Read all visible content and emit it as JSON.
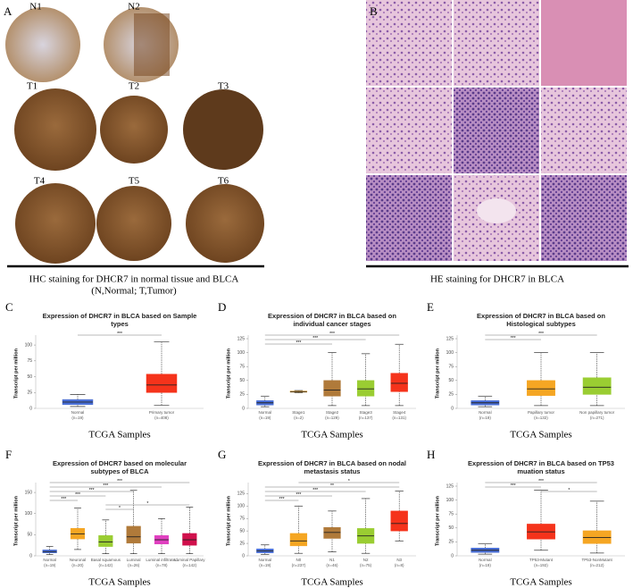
{
  "figure": {
    "panel_a": {
      "label": "A",
      "images": [
        "N1",
        "N2",
        "T1",
        "T2",
        "T3",
        "T4",
        "T5",
        "T6"
      ],
      "caption": [
        "IHC staining for DHCR7 in normal tissue and BLCA",
        "(N,Normal; T,Tumor)"
      ]
    },
    "panel_b": {
      "label": "B",
      "caption": "HE staining for DHCR7 in BLCA"
    }
  },
  "chart_data": [
    {
      "type": "box",
      "panel": "C",
      "title": "Expression of DHCR7 in BLCA based on Sample types",
      "ylabel": "Transcript per million",
      "xlabel": "TCGA Samples",
      "categories": [
        "Normal",
        "Primary tumor"
      ],
      "n_labels": [
        "(n=19)",
        "(n=408)"
      ],
      "colors": [
        "#4a6fd6",
        "#f5331b"
      ],
      "boxes": [
        {
          "min": 3,
          "q1": 6,
          "median": 10,
          "q3": 14,
          "max": 22
        },
        {
          "min": 5,
          "q1": 25,
          "median": 37,
          "q3": 54,
          "max": 105
        }
      ],
      "ylim": [
        0,
        110
      ],
      "yticks": [
        0,
        25,
        50,
        75,
        100
      ],
      "annotations": [
        {
          "from": 0,
          "to": 1,
          "label": "***"
        }
      ]
    },
    {
      "type": "box",
      "panel": "D",
      "title": "Expression of DHCR7 in BLCA based on individual cancer stages",
      "ylabel": "Transcript per million",
      "xlabel": "TCGA Samples",
      "categories": [
        "Normal",
        "Stage1",
        "Stage2",
        "Stage3",
        "Stage4"
      ],
      "n_labels": [
        "(n=19)",
        "(n=2)",
        "(n=129)",
        "(n=137)",
        "(n=131)"
      ],
      "colors": [
        "#4a6fd6",
        "#f5a623",
        "#b07a3a",
        "#9acd32",
        "#f5331b"
      ],
      "boxes": [
        {
          "min": 3,
          "q1": 6,
          "median": 10,
          "q3": 14,
          "max": 22
        },
        {
          "min": 28,
          "q1": 29,
          "median": 30,
          "q3": 31,
          "max": 32
        },
        {
          "min": 5,
          "q1": 22,
          "median": 33,
          "q3": 50,
          "max": 100
        },
        {
          "min": 5,
          "q1": 22,
          "median": 35,
          "q3": 50,
          "max": 98
        },
        {
          "min": 5,
          "q1": 30,
          "median": 45,
          "q3": 63,
          "max": 115
        }
      ],
      "ylim": [
        0,
        125
      ],
      "yticks": [
        0,
        25,
        50,
        75,
        100,
        125
      ],
      "annotations": [
        {
          "from": 0,
          "to": 4,
          "label": "***"
        },
        {
          "from": 0,
          "to": 3,
          "label": "***"
        },
        {
          "from": 0,
          "to": 2,
          "label": "***"
        }
      ]
    },
    {
      "type": "box",
      "panel": "E",
      "title": "Expression of DHCR7 in BLCA based on Histological subtypes",
      "ylabel": "Transcript per million",
      "xlabel": "TCGA Samples",
      "categories": [
        "Normal",
        "Papillary tumor",
        "Non papillary tumor"
      ],
      "n_labels": [
        "(n=19)",
        "(n=132)",
        "(n=271)"
      ],
      "colors": [
        "#4a6fd6",
        "#f5a623",
        "#9acd32"
      ],
      "boxes": [
        {
          "min": 3,
          "q1": 6,
          "median": 10,
          "q3": 14,
          "max": 22
        },
        {
          "min": 5,
          "q1": 23,
          "median": 35,
          "q3": 50,
          "max": 100
        },
        {
          "min": 5,
          "q1": 25,
          "median": 38,
          "q3": 55,
          "max": 100
        }
      ],
      "ylim": [
        0,
        125
      ],
      "yticks": [
        0,
        25,
        50,
        75,
        100,
        125
      ],
      "annotations": [
        {
          "from": 0,
          "to": 2,
          "label": "***"
        },
        {
          "from": 0,
          "to": 1,
          "label": "***"
        }
      ]
    },
    {
      "type": "box",
      "panel": "F",
      "title": "Expression of DHCR7 based on molecular subtypes of BLCA",
      "ylabel": "Transcript per million",
      "xlabel": "TCGA Samples",
      "categories": [
        "Normal",
        "Neuronal",
        "Basal squamous",
        "Luminal",
        "Luminal infiltrated",
        "Luminal Papillary"
      ],
      "n_labels": [
        "(n=19)",
        "(n=20)",
        "(n=142)",
        "(n=26)",
        "(n=78)",
        "(n=142)"
      ],
      "colors": [
        "#4a6fd6",
        "#f5a623",
        "#9acd32",
        "#b07a3a",
        "#e040c0",
        "#d0104c"
      ],
      "boxes": [
        {
          "min": 3,
          "q1": 7,
          "median": 10,
          "q3": 14,
          "max": 22
        },
        {
          "min": 15,
          "q1": 40,
          "median": 52,
          "q3": 65,
          "max": 113
        },
        {
          "min": 5,
          "q1": 22,
          "median": 33,
          "q3": 48,
          "max": 85
        },
        {
          "min": 5,
          "q1": 30,
          "median": 45,
          "q3": 70,
          "max": 155
        },
        {
          "min": 5,
          "q1": 28,
          "median": 38,
          "q3": 48,
          "max": 88
        },
        {
          "min": 5,
          "q1": 25,
          "median": 38,
          "q3": 53,
          "max": 115
        }
      ],
      "ylim": [
        0,
        165
      ],
      "yticks": [
        0,
        50,
        100,
        150
      ],
      "annotations": [
        {
          "from": 0,
          "to": 5,
          "label": "***"
        },
        {
          "from": 0,
          "to": 4,
          "label": "***"
        },
        {
          "from": 0,
          "to": 3,
          "label": "***"
        },
        {
          "from": 0,
          "to": 2,
          "label": "***"
        },
        {
          "from": 0,
          "to": 1,
          "label": "***"
        },
        {
          "from": 2,
          "to": 5,
          "label": "*"
        },
        {
          "from": 2,
          "to": 3,
          "label": "*"
        }
      ]
    },
    {
      "type": "box",
      "panel": "G",
      "title": "Expression of DHCR7 in BLCA based on nodal metastasis status",
      "ylabel": "Transcript per million",
      "xlabel": "TCGA Samples",
      "categories": [
        "Normal",
        "N0",
        "N1",
        "N2",
        "N3"
      ],
      "n_labels": [
        "(n=19)",
        "(n=237)",
        "(n=46)",
        "(n=75)",
        "(n=8)"
      ],
      "colors": [
        "#4a6fd6",
        "#f5a623",
        "#b07a3a",
        "#9acd32",
        "#f5331b"
      ],
      "boxes": [
        {
          "min": 3,
          "q1": 6,
          "median": 10,
          "q3": 14,
          "max": 22
        },
        {
          "min": 5,
          "q1": 20,
          "median": 30,
          "q3": 45,
          "max": 100
        },
        {
          "min": 8,
          "q1": 35,
          "median": 47,
          "q3": 57,
          "max": 90
        },
        {
          "min": 5,
          "q1": 25,
          "median": 40,
          "q3": 55,
          "max": 115
        },
        {
          "min": 30,
          "q1": 50,
          "median": 65,
          "q3": 90,
          "max": 130
        }
      ],
      "ylim": [
        0,
        140
      ],
      "yticks": [
        0,
        25,
        50,
        75,
        100,
        125
      ],
      "annotations": [
        {
          "from": 1,
          "to": 4,
          "label": "*"
        },
        {
          "from": 0,
          "to": 4,
          "label": "**"
        },
        {
          "from": 0,
          "to": 3,
          "label": "***"
        },
        {
          "from": 0,
          "to": 2,
          "label": "***"
        },
        {
          "from": 0,
          "to": 1,
          "label": "***"
        }
      ]
    },
    {
      "type": "box",
      "panel": "H",
      "title": "Expression of DHCR7 in BLCA based on TP53 muation status",
      "ylabel": "Transcript per million",
      "xlabel": "TCGA Samples",
      "categories": [
        "Normal",
        "TP53-Mutant",
        "TP53-NonMutant"
      ],
      "n_labels": [
        "(n=19)",
        "(n=192)",
        "(n=212)"
      ],
      "colors": [
        "#4a6fd6",
        "#f5331b",
        "#f5a623"
      ],
      "boxes": [
        {
          "min": 3,
          "q1": 6,
          "median": 10,
          "q3": 14,
          "max": 22
        },
        {
          "min": 10,
          "q1": 30,
          "median": 43,
          "q3": 57,
          "max": 118
        },
        {
          "min": 5,
          "q1": 22,
          "median": 33,
          "q3": 45,
          "max": 98
        }
      ],
      "ylim": [
        0,
        125
      ],
      "yticks": [
        0,
        25,
        50,
        75,
        100,
        125
      ],
      "annotations": [
        {
          "from": 0,
          "to": 2,
          "label": "***"
        },
        {
          "from": 0,
          "to": 1,
          "label": "***"
        },
        {
          "from": 1,
          "to": 2,
          "label": "*"
        }
      ]
    }
  ]
}
